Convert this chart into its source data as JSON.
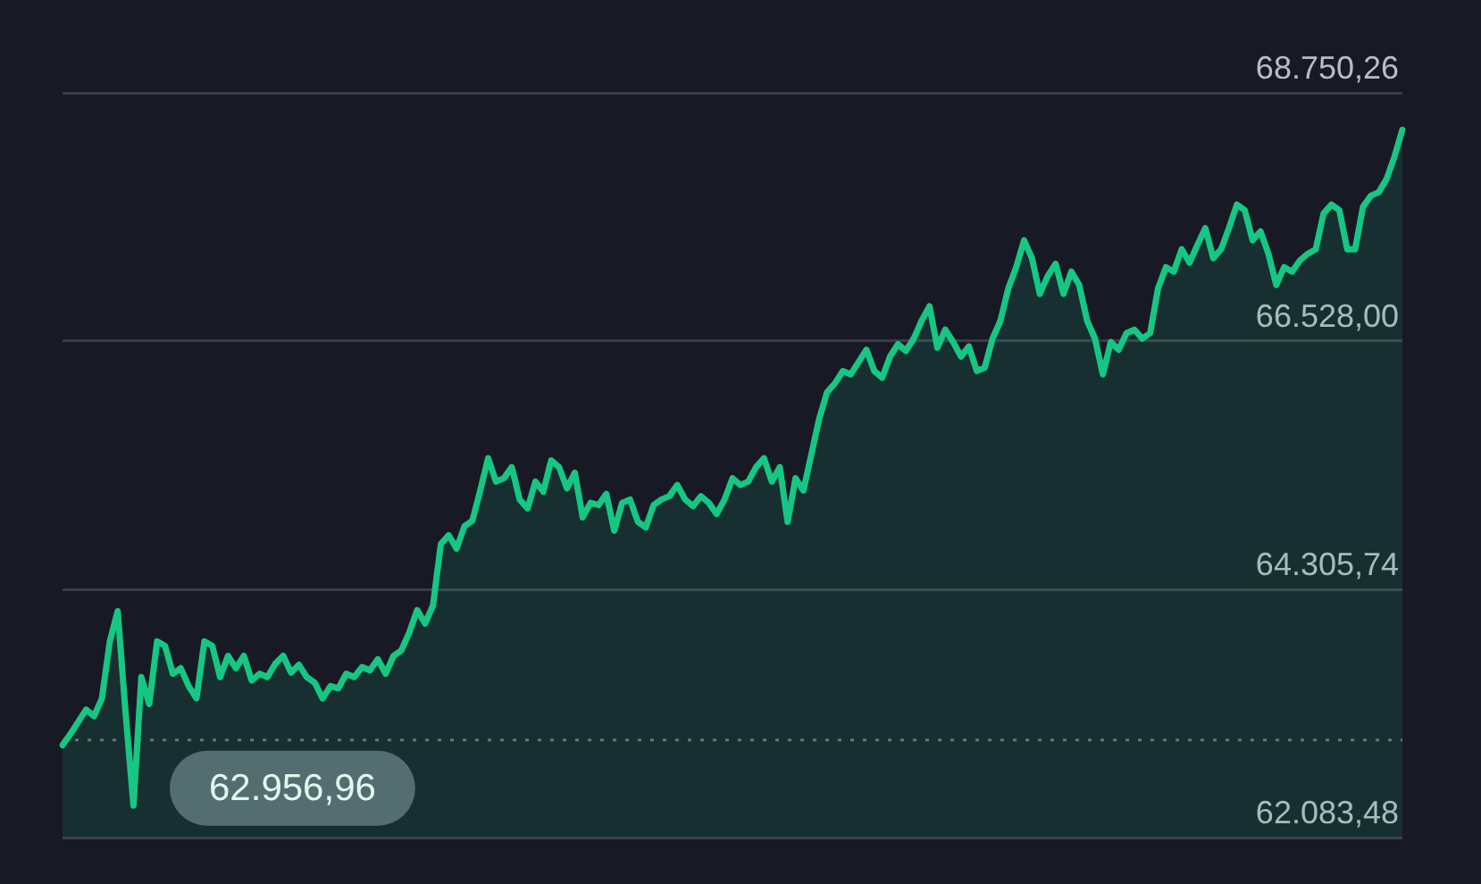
{
  "chart_data": {
    "type": "area",
    "categories": [
      null,
      null,
      null,
      null,
      null,
      null,
      null,
      null,
      null,
      null,
      null,
      null,
      null,
      null,
      null,
      null,
      null,
      null,
      null,
      null,
      null,
      null,
      null,
      null,
      null,
      null,
      null,
      null,
      null,
      null,
      null,
      null,
      null,
      null,
      null,
      null,
      null,
      null,
      null,
      null,
      null,
      null,
      null,
      null,
      null,
      null,
      null,
      null,
      null,
      null,
      null,
      null,
      null,
      null,
      null,
      null,
      null,
      null,
      null,
      null,
      null,
      null,
      null,
      null,
      null,
      null,
      null,
      null,
      null,
      null,
      null,
      null,
      null,
      null,
      null,
      null,
      null,
      null,
      null,
      null,
      null,
      null,
      null,
      null,
      null,
      null,
      null,
      null,
      null,
      null,
      null,
      null,
      null,
      null,
      null,
      null,
      null,
      null,
      null,
      null,
      null,
      null,
      null,
      null,
      null,
      null,
      null,
      null,
      null,
      null,
      null,
      null,
      null,
      null,
      null,
      null,
      null,
      null,
      null,
      null,
      null,
      null,
      null,
      null,
      null,
      null,
      null,
      null,
      null,
      null,
      null,
      null,
      null,
      null,
      null,
      null,
      null,
      null,
      null,
      null,
      null,
      null,
      null,
      null,
      null,
      null,
      null,
      null,
      null,
      null,
      null,
      null,
      null,
      null,
      null,
      null,
      null,
      null,
      null,
      null,
      null,
      null,
      null,
      null,
      null,
      null,
      null,
      null,
      null,
      null,
      null
    ],
    "series": [
      {
        "color": "#16c784",
        "values": [
          62910,
          63010,
          63120,
          63230,
          63170,
          63330,
          63840,
          64110,
          63200,
          62370,
          63520,
          63280,
          63840,
          63800,
          63550,
          63600,
          63440,
          63330,
          63840,
          63800,
          63520,
          63710,
          63600,
          63710,
          63490,
          63550,
          63520,
          63640,
          63710,
          63560,
          63630,
          63520,
          63470,
          63330,
          63440,
          63420,
          63550,
          63520,
          63610,
          63580,
          63680,
          63550,
          63710,
          63760,
          63920,
          64120,
          64000,
          64160,
          64710,
          64790,
          64670,
          64870,
          64920,
          65190,
          65480,
          65270,
          65300,
          65400,
          65110,
          65030,
          65270,
          65180,
          65460,
          65400,
          65210,
          65350,
          64950,
          65080,
          65060,
          65160,
          64830,
          65080,
          65110,
          64910,
          64860,
          65060,
          65110,
          65140,
          65240,
          65110,
          65050,
          65140,
          65080,
          64980,
          65110,
          65300,
          65240,
          65270,
          65400,
          65480,
          65270,
          65400,
          64910,
          65300,
          65190,
          65510,
          65830,
          66070,
          66150,
          66260,
          66230,
          66340,
          66450,
          66260,
          66200,
          66390,
          66500,
          66440,
          66550,
          66710,
          66840,
          66470,
          66630,
          66520,
          66390,
          66480,
          66260,
          66290,
          66550,
          66710,
          67000,
          67190,
          67430,
          67270,
          66950,
          67110,
          67220,
          66950,
          67150,
          67030,
          66710,
          66550,
          66230,
          66520,
          66450,
          66600,
          66630,
          66550,
          66600,
          67000,
          67190,
          67150,
          67350,
          67230,
          67390,
          67540,
          67270,
          67350,
          67540,
          67750,
          67700,
          67430,
          67510,
          67310,
          67030,
          67190,
          67150,
          67250,
          67310,
          67350,
          67670,
          67750,
          67700,
          67350,
          67350,
          67730,
          67830,
          67860,
          67980,
          68180,
          68420
        ]
      }
    ],
    "ylim": [
      62083.48,
      68750.26
    ],
    "yticks": [
      {
        "value": 62083.48,
        "label": "62.083,48"
      },
      {
        "value": 64305.74,
        "label": "64.305,74"
      },
      {
        "value": 66528.0,
        "label": "66.528,00"
      },
      {
        "value": 68750.26,
        "label": "68.750,26"
      }
    ],
    "ref_lines": [
      {
        "axis": "y",
        "value": 62956.96,
        "label": "62.956,96",
        "color": "#6b6e78",
        "line_style": "dotted"
      }
    ],
    "grid": "y",
    "legend": false,
    "marker": "none",
    "line_style": "solid"
  }
}
